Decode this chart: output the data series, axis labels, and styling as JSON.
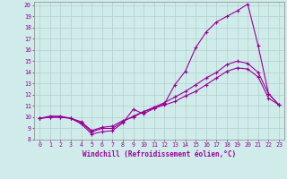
{
  "xlabel": "Windchill (Refroidissement éolien,°C)",
  "bg_color": "#d0ecea",
  "line_color": "#990099",
  "xlim": [
    -0.5,
    23.5
  ],
  "ylim": [
    8,
    20.3
  ],
  "xticks": [
    0,
    1,
    2,
    3,
    4,
    5,
    6,
    7,
    8,
    9,
    10,
    11,
    12,
    13,
    14,
    15,
    16,
    17,
    18,
    19,
    20,
    21,
    22,
    23
  ],
  "yticks": [
    8,
    9,
    10,
    11,
    12,
    13,
    14,
    15,
    16,
    17,
    18,
    19,
    20
  ],
  "line1_x": [
    0,
    1,
    2,
    3,
    4,
    5,
    6,
    7,
    8,
    9,
    10,
    11,
    12,
    13,
    14,
    15,
    16,
    17,
    18,
    19,
    20,
    21,
    22,
    23
  ],
  "line1_y": [
    9.9,
    10.1,
    10.1,
    9.9,
    9.4,
    8.5,
    8.7,
    8.8,
    9.5,
    10.7,
    10.3,
    10.8,
    11.2,
    12.9,
    14.1,
    16.2,
    17.6,
    18.5,
    19.0,
    19.5,
    20.1,
    16.4,
    12.1,
    11.1
  ],
  "line2_x": [
    0,
    1,
    2,
    3,
    4,
    5,
    6,
    7,
    8,
    9,
    10,
    11,
    12,
    13,
    14,
    15,
    16,
    17,
    18,
    19,
    20,
    21,
    22,
    23
  ],
  "line2_y": [
    9.9,
    10.0,
    10.0,
    9.9,
    9.5,
    8.7,
    9.0,
    9.0,
    9.6,
    10.1,
    10.5,
    10.9,
    11.3,
    11.8,
    12.3,
    12.9,
    13.5,
    14.0,
    14.7,
    15.0,
    14.8,
    14.0,
    12.1,
    11.1
  ],
  "line3_x": [
    0,
    1,
    2,
    3,
    4,
    5,
    6,
    7,
    8,
    9,
    10,
    11,
    12,
    13,
    14,
    15,
    16,
    17,
    18,
    19,
    20,
    21,
    22,
    23
  ],
  "line3_y": [
    9.9,
    10.0,
    10.0,
    9.9,
    9.6,
    8.8,
    9.1,
    9.2,
    9.7,
    10.0,
    10.5,
    10.8,
    11.1,
    11.4,
    11.9,
    12.3,
    12.9,
    13.5,
    14.1,
    14.4,
    14.3,
    13.6,
    11.7,
    11.1
  ],
  "tick_fontsize": 4.8,
  "label_fontsize": 5.5
}
